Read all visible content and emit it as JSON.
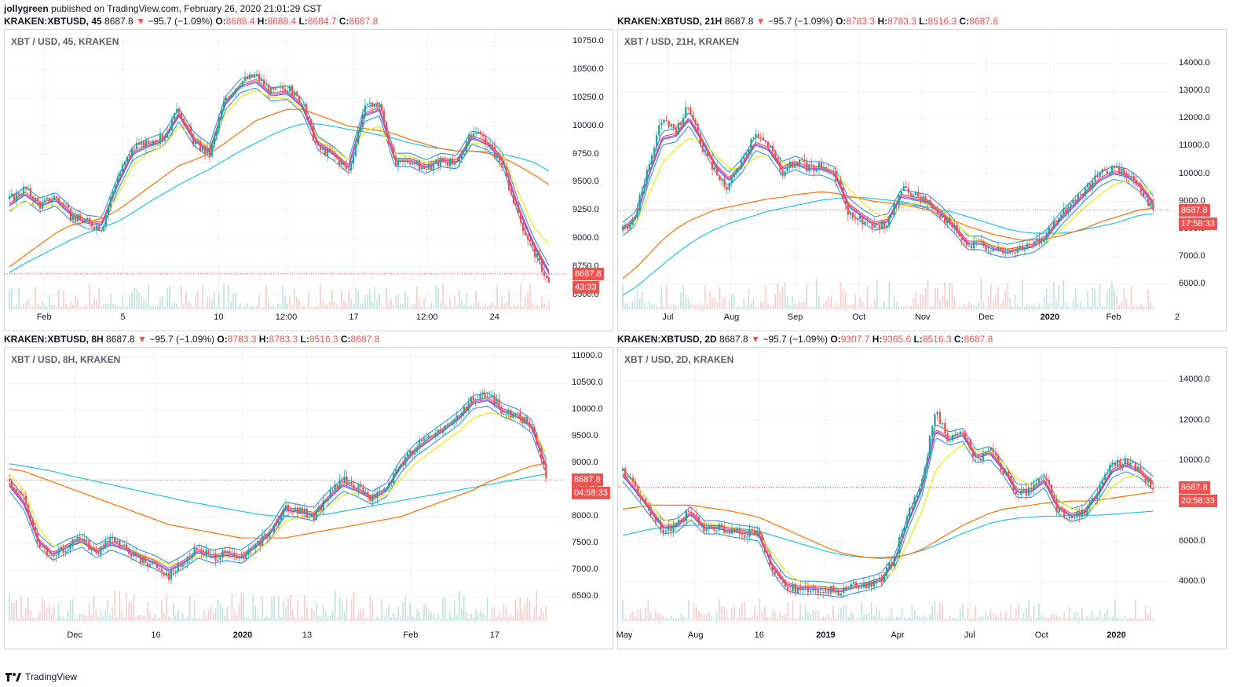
{
  "header": {
    "author": "jollygreen",
    "published": "published on TradingView.com, February 26, 2020 21:01:29 CST"
  },
  "footer": {
    "brand": "TradingView"
  },
  "colors": {
    "up": "#26a69a",
    "down": "#ef5350",
    "ema_purple": "#c04bde",
    "ema_blue": "#2f5bea",
    "ema_red": "#ff3b3b",
    "sma_yellow": "#f2ea2e",
    "ma_orange": "#ff6f00",
    "ma_cyan": "#22c2e2",
    "band": "#1e88e5",
    "grid": "#f0f3fa",
    "price_line": "#ef5350"
  },
  "panels": [
    {
      "title": {
        "symbol": "KRAKEN:XBTUSD, 45",
        "last": "8687.8",
        "change": "−95.7 (−1.09%)",
        "o": "8688.4",
        "h": "8688.4",
        "l": "8684.7",
        "c": "8687.8"
      },
      "legend": "XBT / USD, 45, KRAKEN",
      "price_tag": "8687.8",
      "countdown": "43:33",
      "y_ticks": [
        "10750.0",
        "10500.0",
        "10250.0",
        "10000.0",
        "9750.0",
        "9500.0",
        "9250.0",
        "9000.0",
        "8750.0",
        "8500.0"
      ],
      "x_ticks": [
        {
          "t": "Feb",
          "bold": false
        },
        {
          "t": "5",
          "bold": false
        },
        {
          "t": "10",
          "bold": false
        },
        {
          "t": "12:00",
          "bold": false
        },
        {
          "t": "17",
          "bold": false
        },
        {
          "t": "12:00",
          "bold": false
        },
        {
          "t": "24",
          "bold": false
        }
      ]
    },
    {
      "title": {
        "symbol": "KRAKEN:XBTUSD, 21H",
        "last": "8687.8",
        "change": "−95.7 (−1.09%)",
        "o": "8783.3",
        "h": "8783.3",
        "l": "8516.3",
        "c": "8687.8"
      },
      "legend": "XBT / USD, 21H, KRAKEN",
      "price_tag": "8687.8",
      "countdown": "17:58:33",
      "y_ticks": [
        "14000.0",
        "13000.0",
        "12000.0",
        "11000.0",
        "10000.0",
        "9000.0",
        "8000.0",
        "7000.0",
        "6000.0"
      ],
      "x_ticks": [
        {
          "t": "Jul",
          "bold": false
        },
        {
          "t": "Aug",
          "bold": false
        },
        {
          "t": "Sep",
          "bold": false
        },
        {
          "t": "Oct",
          "bold": false
        },
        {
          "t": "Nov",
          "bold": false
        },
        {
          "t": "Dec",
          "bold": false
        },
        {
          "t": "2020",
          "bold": true
        },
        {
          "t": "Feb",
          "bold": false
        },
        {
          "t": "2",
          "bold": false
        }
      ]
    },
    {
      "title": {
        "symbol": "KRAKEN:XBTUSD, 8H",
        "last": "8687.8",
        "change": "−95.7 (−1.09%)",
        "o": "8783.3",
        "h": "8783.3",
        "l": "8516.3",
        "c": "8687.8"
      },
      "legend": "XBT / USD, 8H, KRAKEN",
      "price_tag": "8687.8",
      "countdown": "04:58:33",
      "y_ticks": [
        "11000.0",
        "10500.0",
        "10000.0",
        "9500.0",
        "9000.0",
        "8500.0",
        "8000.0",
        "7500.0",
        "7000.0",
        "6500.0"
      ],
      "x_ticks": [
        {
          "t": "Dec",
          "bold": false
        },
        {
          "t": "16",
          "bold": false
        },
        {
          "t": "2020",
          "bold": true
        },
        {
          "t": "13",
          "bold": false
        },
        {
          "t": "Feb",
          "bold": false
        },
        {
          "t": "17",
          "bold": false
        }
      ]
    },
    {
      "title": {
        "symbol": "KRAKEN:XBTUSD, 2D",
        "last": "8687.8",
        "change": "−95.7 (−1.09%)",
        "o": "9307.7",
        "h": "9365.6",
        "l": "8516.3",
        "c": "8687.8"
      },
      "legend": "XBT / USD, 2D, KRAKEN",
      "price_tag": "8687.8",
      "countdown": "20:58:33",
      "y_ticks": [
        "14000.0",
        "12000.0",
        "10000.0",
        "8000.0",
        "6000.0",
        "4000.0"
      ],
      "x_ticks": [
        {
          "t": "May",
          "bold": false
        },
        {
          "t": "Aug",
          "bold": false
        },
        {
          "t": "16",
          "bold": false
        },
        {
          "t": "2019",
          "bold": true
        },
        {
          "t": "Apr",
          "bold": false
        },
        {
          "t": "Jul",
          "bold": false
        },
        {
          "t": "Oct",
          "bold": false
        },
        {
          "t": "2020",
          "bold": true
        }
      ]
    }
  ],
  "chart_data": [
    {
      "type": "candlestick",
      "interval": "45",
      "last": 8687.8,
      "ylim": [
        8400,
        10800
      ],
      "x_ticks": [
        "Feb",
        "5",
        "10",
        "12:00",
        "17",
        "12:00",
        "24"
      ],
      "anchors": [
        9350,
        9450,
        9300,
        9380,
        9200,
        9150,
        9100,
        9550,
        9800,
        9850,
        9900,
        10150,
        9850,
        9750,
        10250,
        10400,
        10450,
        10300,
        10350,
        10200,
        9800,
        9750,
        9600,
        10150,
        10200,
        9650,
        9700,
        9600,
        9700,
        9650,
        9950,
        9850,
        9650,
        9200,
        8900,
        8600
      ],
      "ema_fast": [
        9300,
        9400,
        9300,
        9350,
        9220,
        9150,
        9130,
        9480,
        9760,
        9830,
        9880,
        10100,
        9880,
        9780,
        10200,
        10360,
        10400,
        10280,
        10300,
        10180,
        9850,
        9760,
        9640,
        10100,
        10150,
        9700,
        9700,
        9640,
        9700,
        9680,
        9900,
        9850,
        9700,
        9280,
        8950,
        8700
      ],
      "sma_yellow": [
        9250,
        9330,
        9280,
        9300,
        9230,
        9170,
        9150,
        9380,
        9650,
        9760,
        9820,
        10000,
        9900,
        9820,
        10100,
        10260,
        10320,
        10250,
        10250,
        10150,
        9900,
        9800,
        9700,
        9950,
        10000,
        9760,
        9730,
        9680,
        9700,
        9700,
        9850,
        9840,
        9740,
        9420,
        9100,
        8950
      ],
      "ma_orange": [
        8750,
        8850,
        8950,
        9050,
        9120,
        9150,
        9180,
        9250,
        9350,
        9450,
        9550,
        9650,
        9700,
        9760,
        9850,
        9950,
        10050,
        10100,
        10150,
        10150,
        10100,
        10050,
        10000,
        9980,
        9960,
        9930,
        9880,
        9840,
        9800,
        9780,
        9780,
        9760,
        9720,
        9650,
        9570,
        9480
      ],
      "ma_cyan": [
        8700,
        8780,
        8850,
        8920,
        8990,
        9050,
        9100,
        9150,
        9230,
        9320,
        9400,
        9480,
        9550,
        9620,
        9700,
        9780,
        9850,
        9920,
        9980,
        10020,
        10020,
        10000,
        9970,
        9950,
        9920,
        9890,
        9850,
        9820,
        9800,
        9780,
        9780,
        9770,
        9750,
        9720,
        9680,
        9600
      ]
    },
    {
      "type": "candlestick",
      "interval": "21H",
      "last": 8687.8,
      "ylim": [
        5200,
        15000
      ],
      "x_ticks": [
        "Jul",
        "Aug",
        "Sep",
        "Oct",
        "Nov",
        "Dec",
        "2020",
        "Feb",
        "2"
      ],
      "anchors": [
        8000,
        8500,
        10500,
        12000,
        11500,
        12500,
        11000,
        10000,
        9500,
        10500,
        11500,
        11000,
        10000,
        10500,
        10200,
        10300,
        10000,
        8500,
        8300,
        8000,
        8200,
        9500,
        9200,
        9000,
        8500,
        8000,
        7300,
        7500,
        7200,
        7100,
        7300,
        7400,
        7800,
        8500,
        9000,
        9500,
        10000,
        10200,
        10000,
        9500,
        8700
      ],
      "ema_fast": [
        8000,
        8400,
        10000,
        11300,
        11400,
        12000,
        11200,
        10300,
        9800,
        10300,
        11100,
        10900,
        10200,
        10400,
        10200,
        10200,
        10000,
        8900,
        8500,
        8200,
        8300,
        9200,
        9100,
        9000,
        8600,
        8100,
        7500,
        7500,
        7300,
        7200,
        7300,
        7400,
        7750,
        8350,
        8850,
        9350,
        9800,
        10050,
        9950,
        9600,
        8950
      ],
      "sma_yellow": [
        7900,
        8200,
        9300,
        10400,
        10900,
        11300,
        11200,
        10700,
        10200,
        10200,
        10600,
        10700,
        10400,
        10300,
        10200,
        10200,
        10050,
        9500,
        9000,
        8600,
        8400,
        8800,
        8950,
        8900,
        8700,
        8300,
        7800,
        7600,
        7400,
        7300,
        7300,
        7350,
        7550,
        7950,
        8400,
        8850,
        9250,
        9600,
        9750,
        9650,
        9300
      ],
      "ma_orange": [
        6200,
        6600,
        7100,
        7600,
        8000,
        8300,
        8500,
        8700,
        8800,
        8900,
        9000,
        9100,
        9150,
        9250,
        9300,
        9350,
        9300,
        9200,
        9100,
        9000,
        8950,
        8900,
        8800,
        8700,
        8500,
        8300,
        8100,
        7950,
        7800,
        7700,
        7600,
        7600,
        7650,
        7750,
        7900,
        8050,
        8250,
        8400,
        8550,
        8700,
        8750
      ],
      "ma_cyan": [
        5600,
        5900,
        6300,
        6700,
        7100,
        7450,
        7750,
        8000,
        8200,
        8350,
        8500,
        8650,
        8750,
        8850,
        8950,
        9050,
        9100,
        9150,
        9150,
        9100,
        9050,
        9000,
        8900,
        8800,
        8700,
        8600,
        8450,
        8300,
        8150,
        8000,
        7900,
        7850,
        7850,
        7850,
        7900,
        8000,
        8100,
        8200,
        8350,
        8500,
        8550
      ]
    },
    {
      "type": "candlestick",
      "interval": "8H",
      "last": 8687.8,
      "ylim": [
        6100,
        11050
      ],
      "x_ticks": [
        "Dec",
        "16",
        "2020",
        "13",
        "Feb",
        "17"
      ],
      "anchors": [
        8700,
        8300,
        7500,
        7200,
        7450,
        7600,
        7300,
        7550,
        7400,
        7200,
        7100,
        6900,
        7150,
        7400,
        7250,
        7300,
        7200,
        7450,
        7700,
        8200,
        8100,
        8000,
        8400,
        8700,
        8550,
        8350,
        8500,
        9000,
        9300,
        9500,
        9700,
        9900,
        10200,
        10300,
        10000,
        9900,
        9700,
        8800
      ],
      "ema_fast": [
        8600,
        8250,
        7550,
        7300,
        7450,
        7550,
        7350,
        7500,
        7400,
        7250,
        7150,
        7000,
        7150,
        7350,
        7250,
        7300,
        7250,
        7450,
        7700,
        8150,
        8100,
        8050,
        8350,
        8600,
        8500,
        8350,
        8500,
        8950,
        9250,
        9450,
        9650,
        9850,
        10150,
        10200,
        10000,
        9900,
        9700,
        8950
      ],
      "sma_yellow": [
        8800,
        8500,
        7800,
        7450,
        7450,
        7500,
        7400,
        7450,
        7400,
        7300,
        7200,
        7100,
        7150,
        7250,
        7250,
        7250,
        7250,
        7350,
        7550,
        7900,
        8000,
        8000,
        8200,
        8400,
        8450,
        8350,
        8400,
        8700,
        9000,
        9200,
        9400,
        9600,
        9850,
        9950,
        9900,
        9850,
        9700,
        9200
      ],
      "ma_orange": [
        8900,
        8850,
        8750,
        8650,
        8550,
        8450,
        8350,
        8250,
        8150,
        8050,
        7950,
        7850,
        7800,
        7750,
        7700,
        7650,
        7600,
        7600,
        7600,
        7600,
        7650,
        7700,
        7750,
        7800,
        7850,
        7900,
        7950,
        8000,
        8100,
        8200,
        8300,
        8400,
        8500,
        8650,
        8750,
        8850,
        8950,
        9000
      ],
      "ma_cyan": [
        8990,
        8950,
        8900,
        8850,
        8780,
        8720,
        8660,
        8600,
        8540,
        8480,
        8420,
        8360,
        8300,
        8250,
        8200,
        8150,
        8100,
        8050,
        8020,
        8000,
        8000,
        8020,
        8050,
        8100,
        8150,
        8200,
        8250,
        8300,
        8350,
        8400,
        8450,
        8500,
        8550,
        8600,
        8650,
        8700,
        8750,
        8800
      ]
    },
    {
      "type": "candlestick",
      "interval": "2D",
      "last": 8687.8,
      "ylim": [
        2200,
        15300
      ],
      "x_ticks": [
        "May",
        "Aug",
        "16",
        "2019",
        "Apr",
        "Jul",
        "Oct",
        "2020"
      ],
      "anchors": [
        9500,
        8500,
        7500,
        6500,
        6800,
        7600,
        6600,
        6700,
        6500,
        6400,
        6300,
        4500,
        3700,
        3600,
        3700,
        3600,
        3500,
        3800,
        3900,
        4100,
        5200,
        7500,
        9000,
        12500,
        11000,
        11500,
        10000,
        10500,
        9500,
        8300,
        8500,
        9200,
        7500,
        7200,
        7500,
        8600,
        9800,
        10000,
        9500,
        8700
      ],
      "ema_fast": [
        9300,
        8500,
        7600,
        6700,
        6800,
        7400,
        6700,
        6700,
        6550,
        6450,
        6350,
        4800,
        3900,
        3700,
        3700,
        3650,
        3550,
        3750,
        3900,
        4100,
        5000,
        7000,
        8600,
        11500,
        11100,
        11300,
        10200,
        10400,
        9600,
        8500,
        8500,
        9000,
        7700,
        7300,
        7500,
        8400,
        9500,
        9800,
        9500,
        8900
      ],
      "sma_yellow": [
        9400,
        8800,
        7900,
        7100,
        6900,
        7100,
        6900,
        6800,
        6700,
        6500,
        6400,
        5400,
        4500,
        4000,
        3800,
        3700,
        3650,
        3700,
        3800,
        4000,
        4600,
        6000,
        7500,
        9500,
        10300,
        10800,
        10500,
        10400,
        9900,
        9100,
        8800,
        8800,
        8100,
        7600,
        7500,
        7900,
        8700,
        9200,
        9300,
        9000
      ],
      "ma_orange": [
        7600,
        7700,
        7800,
        7800,
        7800,
        7800,
        7700,
        7600,
        7500,
        7350,
        7200,
        6900,
        6600,
        6300,
        6000,
        5700,
        5450,
        5300,
        5200,
        5150,
        5200,
        5350,
        5600,
        6000,
        6400,
        6800,
        7100,
        7400,
        7600,
        7700,
        7800,
        7900,
        7950,
        8000,
        8000,
        8050,
        8150,
        8250,
        8350,
        8450
      ],
      "ma_cyan": [
        6300,
        6450,
        6600,
        6700,
        6750,
        6800,
        6800,
        6750,
        6700,
        6600,
        6500,
        6300,
        6100,
        5900,
        5700,
        5500,
        5350,
        5250,
        5200,
        5200,
        5250,
        5350,
        5550,
        5800,
        6100,
        6400,
        6650,
        6900,
        7050,
        7150,
        7200,
        7250,
        7250,
        7300,
        7300,
        7300,
        7350,
        7400,
        7450,
        7500
      ]
    }
  ]
}
